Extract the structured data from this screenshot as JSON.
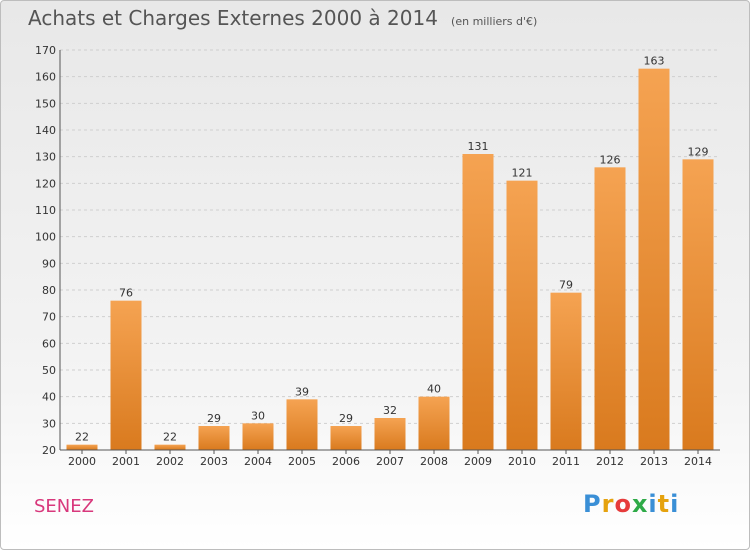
{
  "header": {
    "title": "Achats et Charges Externes 2000 à 2014",
    "subtitle": "(en milliers d'€)"
  },
  "footer": {
    "place": "SENEZ",
    "logo_letters": [
      "P",
      "r",
      "o",
      "x",
      "i",
      "t",
      "i"
    ],
    "logo_colors": [
      "#3a8fd6",
      "#e5a20e",
      "#e63b3b",
      "#2eaa47",
      "#3a8fd6",
      "#e5a20e",
      "#3a8fd6"
    ]
  },
  "colors": {
    "bar_top": "#f5a352",
    "bar_bottom": "#d97a1e",
    "grid": "#cfcfcf",
    "axis": "#555555"
  },
  "chart_data": {
    "type": "bar",
    "categories": [
      "2000",
      "2001",
      "2002",
      "2003",
      "2004",
      "2005",
      "2006",
      "2007",
      "2008",
      "2009",
      "2010",
      "2011",
      "2012",
      "2013",
      "2014"
    ],
    "values": [
      22,
      76,
      22,
      29,
      30,
      39,
      29,
      32,
      40,
      131,
      121,
      79,
      126,
      163,
      129
    ],
    "data_labels": [
      "22",
      "76",
      "22",
      "29",
      "30",
      "39",
      "29",
      "32",
      "40",
      "131",
      "121",
      "79",
      "126",
      "163",
      "129"
    ],
    "ylim": [
      20,
      170
    ],
    "yticks": [
      "20",
      "30",
      "40",
      "50",
      "60",
      "70",
      "80",
      "90",
      "100",
      "110",
      "120",
      "130",
      "140",
      "150",
      "160",
      "170"
    ],
    "grid": true,
    "title": "Achats et Charges Externes 2000 à 2014",
    "xlabel": "",
    "ylabel": ""
  }
}
